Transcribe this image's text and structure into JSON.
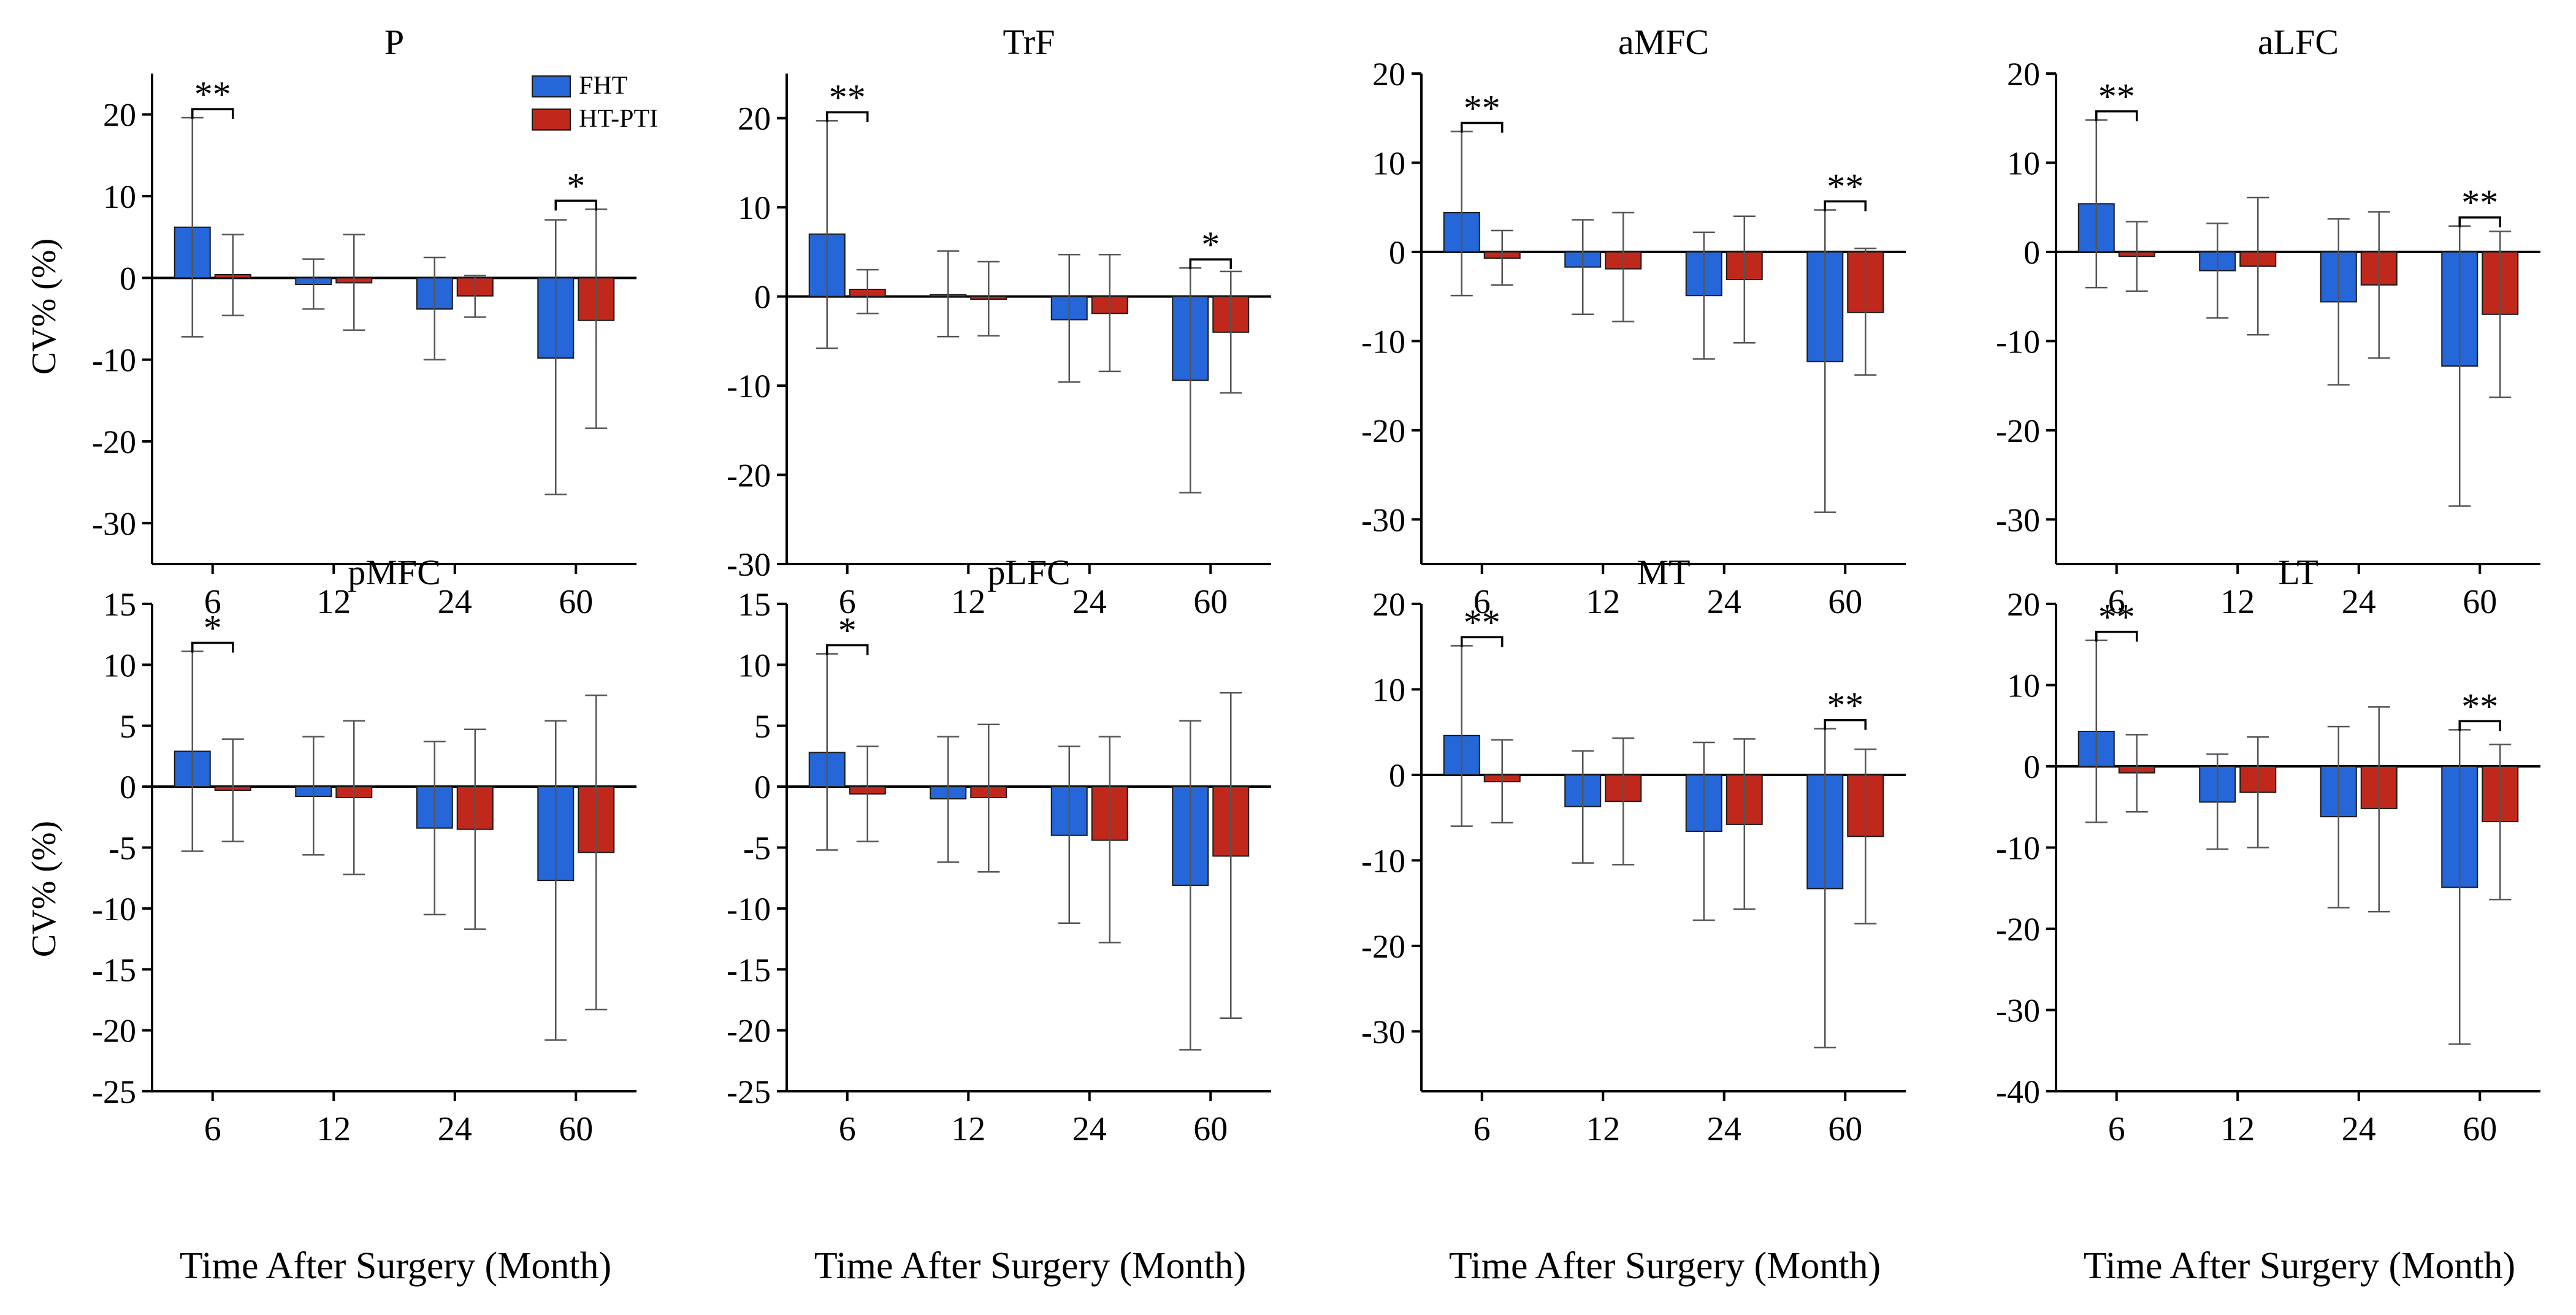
{
  "legend": {
    "placement": "top-right of first panel",
    "entries": [
      {
        "name": "FHT",
        "color": "#2566d8"
      },
      {
        "name": "HT-PTI",
        "color": "#c0281b"
      }
    ]
  },
  "colors": {
    "fht": "#2566d8",
    "htpti": "#c0281b",
    "axis": "#000000",
    "errbar": "#555555"
  },
  "xlabel": "Time After Surgery (Month)",
  "ylabel": "CV% (%)",
  "chart_data": [
    {
      "type": "bar",
      "title": "P",
      "categories": [
        "6",
        "12",
        "24",
        "60"
      ],
      "ylim": [
        -35,
        25
      ],
      "ticks": [
        20,
        10,
        0,
        -10,
        -20,
        -30
      ],
      "series": [
        {
          "name": "FHT",
          "values": [
            6.2,
            -0.8,
            -3.8,
            -9.8
          ],
          "err_up": [
            19.6,
            2.3,
            2.5,
            7.1
          ],
          "err_down": [
            -7.2,
            -3.8,
            -10.0,
            -26.5
          ]
        },
        {
          "name": "HT-PTI",
          "values": [
            0.4,
            -0.6,
            -2.2,
            -5.2
          ],
          "err_up": [
            5.3,
            5.3,
            0.3,
            8.4
          ],
          "err_down": [
            -4.6,
            -6.4,
            -4.8,
            -18.4
          ]
        }
      ],
      "significance": [
        {
          "category": "6",
          "label": "**"
        },
        {
          "category": "60",
          "label": "*"
        }
      ],
      "show_legend": true
    },
    {
      "type": "bar",
      "title": "TrF",
      "categories": [
        "6",
        "12",
        "24",
        "60"
      ],
      "ylim": [
        -30,
        25
      ],
      "ticks": [
        20,
        10,
        0,
        -10,
        -20,
        -30
      ],
      "series": [
        {
          "name": "FHT",
          "values": [
            7.0,
            0.2,
            -2.6,
            -9.4
          ],
          "err_up": [
            19.7,
            5.1,
            4.7,
            3.2
          ],
          "err_down": [
            -5.8,
            -4.5,
            -9.6,
            -22.0
          ]
        },
        {
          "name": "HT-PTI",
          "values": [
            0.8,
            -0.3,
            -1.9,
            -4.0
          ],
          "err_up": [
            3.0,
            3.9,
            4.7,
            2.8
          ],
          "err_down": [
            -1.9,
            -4.4,
            -8.4,
            -10.8
          ]
        }
      ],
      "significance": [
        {
          "category": "6",
          "label": "**"
        },
        {
          "category": "60",
          "label": "*"
        }
      ],
      "show_legend": false
    },
    {
      "type": "bar",
      "title": "aMFC",
      "categories": [
        "6",
        "12",
        "24",
        "60"
      ],
      "ylim": [
        -35,
        20
      ],
      "ticks": [
        20,
        10,
        0,
        -10,
        -20,
        -30
      ],
      "series": [
        {
          "name": "FHT",
          "values": [
            4.4,
            -1.7,
            -4.9,
            -12.3
          ],
          "err_up": [
            13.5,
            3.6,
            2.2,
            4.7
          ],
          "err_down": [
            -4.9,
            -7.0,
            -12.0,
            -29.2
          ]
        },
        {
          "name": "HT-PTI",
          "values": [
            -0.7,
            -1.9,
            -3.1,
            -6.8
          ],
          "err_up": [
            2.4,
            4.4,
            4.0,
            0.4
          ],
          "err_down": [
            -3.7,
            -7.8,
            -10.2,
            -13.8
          ]
        }
      ],
      "significance": [
        {
          "category": "6",
          "label": "**"
        },
        {
          "category": "60",
          "label": "**"
        }
      ],
      "show_legend": false
    },
    {
      "type": "bar",
      "title": "aLFC",
      "categories": [
        "6",
        "12",
        "24",
        "60"
      ],
      "ylim": [
        -35,
        20
      ],
      "ticks": [
        20,
        10,
        0,
        -10,
        -20,
        -30
      ],
      "series": [
        {
          "name": "FHT",
          "values": [
            5.4,
            -2.1,
            -5.6,
            -12.8
          ],
          "err_up": [
            14.8,
            3.2,
            3.7,
            2.9
          ],
          "err_down": [
            -4.0,
            -7.4,
            -14.9,
            -28.5
          ]
        },
        {
          "name": "HT-PTI",
          "values": [
            -0.5,
            -1.6,
            -3.7,
            -7.0
          ],
          "err_up": [
            3.4,
            6.1,
            4.5,
            2.3
          ],
          "err_down": [
            -4.4,
            -9.3,
            -11.9,
            -16.3
          ]
        }
      ],
      "significance": [
        {
          "category": "6",
          "label": "**"
        },
        {
          "category": "60",
          "label": "**"
        }
      ],
      "show_legend": false
    },
    {
      "type": "bar",
      "title": "pMFC",
      "categories": [
        "6",
        "12",
        "24",
        "60"
      ],
      "ylim": [
        -25,
        15
      ],
      "ticks": [
        15,
        10,
        5,
        0,
        -5,
        -10,
        -15,
        -20,
        -25
      ],
      "series": [
        {
          "name": "FHT",
          "values": [
            2.9,
            -0.8,
            -3.4,
            -7.7
          ],
          "err_up": [
            11.1,
            4.1,
            3.7,
            5.4
          ],
          "err_down": [
            -5.3,
            -5.6,
            -10.5,
            -20.8
          ]
        },
        {
          "name": "HT-PTI",
          "values": [
            -0.3,
            -0.9,
            -3.5,
            -5.4
          ],
          "err_up": [
            3.9,
            5.4,
            4.7,
            7.5
          ],
          "err_down": [
            -4.5,
            -7.2,
            -11.7,
            -18.3
          ]
        }
      ],
      "significance": [
        {
          "category": "6",
          "label": "*"
        }
      ],
      "show_legend": false
    },
    {
      "type": "bar",
      "title": "pLFC",
      "categories": [
        "6",
        "12",
        "24",
        "60"
      ],
      "ylim": [
        -25,
        15
      ],
      "ticks": [
        15,
        10,
        5,
        0,
        -5,
        -10,
        -15,
        -20,
        -25
      ],
      "series": [
        {
          "name": "FHT",
          "values": [
            2.8,
            -1.0,
            -4.0,
            -8.1
          ],
          "err_up": [
            10.9,
            4.1,
            3.3,
            5.4
          ],
          "err_down": [
            -5.2,
            -6.2,
            -11.2,
            -21.6
          ]
        },
        {
          "name": "HT-PTI",
          "values": [
            -0.6,
            -0.9,
            -4.4,
            -5.7
          ],
          "err_up": [
            3.3,
            5.1,
            4.1,
            7.7
          ],
          "err_down": [
            -4.5,
            -7.0,
            -12.8,
            -19.0
          ]
        }
      ],
      "significance": [
        {
          "category": "6",
          "label": "*"
        }
      ],
      "show_legend": false
    },
    {
      "type": "bar",
      "title": "MT",
      "categories": [
        "6",
        "12",
        "24",
        "60"
      ],
      "ylim": [
        -37,
        20
      ],
      "ticks": [
        20,
        10,
        0,
        -10,
        -20,
        -30
      ],
      "series": [
        {
          "name": "FHT",
          "values": [
            4.6,
            -3.7,
            -6.6,
            -13.3
          ],
          "err_up": [
            15.1,
            2.8,
            3.8,
            5.4
          ],
          "err_down": [
            -6.0,
            -10.3,
            -17.0,
            -31.9
          ]
        },
        {
          "name": "HT-PTI",
          "values": [
            -0.8,
            -3.1,
            -5.8,
            -7.2
          ],
          "err_up": [
            4.1,
            4.3,
            4.2,
            3.0
          ],
          "err_down": [
            -5.6,
            -10.5,
            -15.7,
            -17.4
          ]
        }
      ],
      "significance": [
        {
          "category": "6",
          "label": "**"
        },
        {
          "category": "60",
          "label": "**"
        }
      ],
      "show_legend": false
    },
    {
      "type": "bar",
      "title": "LT",
      "categories": [
        "6",
        "12",
        "24",
        "60"
      ],
      "ylim": [
        -40,
        20
      ],
      "ticks": [
        20,
        10,
        0,
        -10,
        -20,
        -30,
        -40
      ],
      "series": [
        {
          "name": "FHT",
          "values": [
            4.3,
            -4.4,
            -6.2,
            -14.9
          ],
          "err_up": [
            15.5,
            1.5,
            4.9,
            4.5
          ],
          "err_down": [
            -6.9,
            -10.2,
            -17.4,
            -34.2
          ]
        },
        {
          "name": "HT-PTI",
          "values": [
            -0.8,
            -3.2,
            -5.2,
            -6.8
          ],
          "err_up": [
            3.9,
            3.6,
            7.3,
            2.7
          ],
          "err_down": [
            -5.6,
            -10.0,
            -17.9,
            -16.4
          ]
        }
      ],
      "significance": [
        {
          "category": "6",
          "label": "**"
        },
        {
          "category": "60",
          "label": "**"
        }
      ],
      "show_legend": false
    }
  ]
}
